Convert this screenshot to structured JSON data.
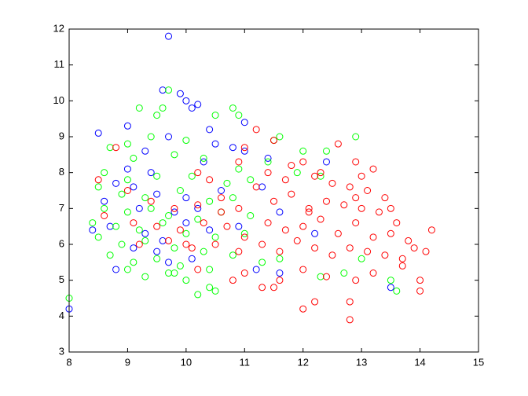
{
  "chart_data": {
    "type": "scatter",
    "xlim": [
      8,
      15
    ],
    "xticks": [
      8,
      9,
      10,
      11,
      12,
      13,
      14,
      15
    ],
    "ylim": [
      3,
      12
    ],
    "yticks": [
      3,
      4,
      5,
      6,
      7,
      8,
      9,
      10,
      11,
      12
    ],
    "grid": false,
    "marker": "circle",
    "series": [
      {
        "color": "#0000ff",
        "x": [
          9.7,
          9.6,
          9.9,
          10,
          10.1,
          10.2,
          9.0,
          8.5,
          9.7,
          10.4,
          11.0,
          9.3,
          10.5,
          10.8,
          11.0,
          9.0,
          9.4,
          10.3,
          11.4,
          12.4,
          8.8,
          9.1,
          9.5,
          10.0,
          10.6,
          11.3,
          8.6,
          9.2,
          9.8,
          10.2,
          8.4,
          8.7,
          9.3,
          9.6,
          10.4,
          11.6,
          12.2,
          9.1,
          9.5,
          9.7,
          10.1,
          11.2,
          11.6,
          8.8,
          8.0,
          13.5,
          10.9,
          10.0
        ],
        "values": [
          11.8,
          10.3,
          10.2,
          10,
          9.8,
          9.9,
          9.3,
          9.1,
          9.0,
          9.2,
          9.4,
          8.6,
          8.8,
          8.7,
          8.6,
          8.1,
          8.0,
          8.3,
          8.4,
          8.3,
          7.7,
          7.6,
          7.4,
          7.3,
          7.5,
          7.6,
          7.2,
          7.0,
          6.9,
          7.0,
          6.4,
          6.5,
          6.3,
          6.1,
          6.4,
          6.9,
          6.3,
          5.9,
          5.8,
          5.5,
          5.6,
          5.3,
          5.2,
          5.3,
          4.2,
          4.8,
          6.5,
          6.6
        ]
      },
      {
        "color": "#00ff00",
        "x": [
          8.0,
          9.7,
          13.6,
          12.9,
          10.8,
          9.2,
          9.5,
          9.6,
          10.5,
          10.9,
          9.0,
          9.4,
          10.0,
          11.5,
          11.6,
          12.0,
          12.4,
          8.7,
          9.1,
          9.8,
          10.3,
          10.9,
          11.4,
          11.9,
          8.6,
          9.0,
          9.5,
          10.1,
          10.7,
          11.1,
          8.5,
          8.9,
          9.3,
          9.9,
          10.4,
          10.8,
          8.6,
          9.0,
          9.4,
          9.7,
          10.2,
          10.6,
          11.1,
          8.4,
          8.8,
          9.2,
          9.6,
          10.0,
          10.5,
          11.0,
          8.5,
          8.9,
          9.3,
          9.8,
          10.3,
          10.8,
          8.7,
          9.1,
          9.5,
          9.9,
          10.4,
          11.3,
          9.0,
          9.3,
          9.8,
          10.0,
          10.2,
          10.4,
          10.5,
          9.7,
          11.6,
          12.3,
          13.5,
          12.7,
          12.3,
          13.0
        ],
        "values": [
          4.5,
          10.3,
          4.7,
          9.0,
          9.8,
          9.8,
          9.6,
          9.8,
          9.6,
          9.6,
          8.8,
          9.0,
          8.9,
          8.9,
          9.0,
          8.6,
          8.6,
          8.7,
          8.4,
          8.5,
          8.4,
          8.1,
          8.3,
          8.0,
          8.0,
          7.8,
          7.9,
          7.9,
          7.7,
          7.8,
          7.6,
          7.4,
          7.3,
          7.5,
          7.2,
          7.3,
          7.0,
          6.9,
          7.0,
          6.8,
          6.7,
          6.9,
          6.8,
          6.6,
          6.5,
          6.4,
          6.6,
          6.3,
          6.2,
          6.3,
          6.2,
          6.0,
          6.1,
          5.9,
          5.8,
          5.7,
          5.7,
          5.5,
          5.6,
          5.4,
          5.3,
          5.5,
          5.3,
          5.1,
          5.2,
          5.0,
          4.6,
          4.8,
          4.7,
          5.2,
          5.6,
          5.1,
          5.0,
          5.2,
          7.9,
          5.6
        ]
      },
      {
        "color": "#ff0000",
        "x": [
          14.2,
          12.8,
          12.0,
          14.0,
          14.0,
          14.1,
          13.9,
          12.2,
          12.8,
          11.2,
          11.5,
          11.0,
          12.0,
          12.6,
          12.9,
          13.2,
          8.5,
          8.8,
          9.0,
          9.4,
          9.8,
          10.2,
          10.6,
          10.9,
          11.2,
          11.5,
          11.8,
          12.1,
          12.4,
          12.7,
          13.0,
          13.3,
          13.6,
          8.6,
          9.1,
          9.5,
          9.9,
          10.3,
          10.7,
          11.0,
          11.4,
          11.7,
          12.0,
          12.3,
          12.6,
          12.9,
          13.2,
          13.5,
          13.8,
          9.2,
          9.7,
          10.1,
          10.5,
          10.9,
          11.3,
          11.6,
          11.9,
          12.2,
          12.5,
          12.8,
          13.1,
          13.4,
          13.7,
          10.8,
          11.0,
          11.3,
          11.6,
          12.0,
          12.4,
          12.9,
          13.2,
          13.7,
          11.4,
          11.7,
          12.2,
          12.5,
          12.8,
          13.1,
          10.4,
          10.9,
          10.2,
          11.8,
          12.3,
          13.0,
          13.4,
          10.0,
          10.2,
          11.5,
          12.9,
          13.5,
          12.1,
          10.6
        ],
        "values": [
          6.4,
          3.9,
          4.2,
          4.7,
          5.0,
          5.8,
          5.9,
          4.4,
          4.4,
          9.2,
          8.9,
          8.7,
          8.3,
          8.8,
          8.3,
          8.1,
          7.8,
          8.7,
          7.5,
          7.2,
          7.0,
          7.1,
          7.3,
          7.0,
          7.6,
          7.2,
          7.4,
          7.0,
          7.2,
          7.1,
          7.0,
          6.9,
          6.6,
          6.8,
          6.6,
          6.5,
          6.4,
          6.6,
          6.5,
          6.2,
          6.6,
          6.4,
          6.5,
          6.7,
          6.3,
          6.6,
          6.2,
          6.3,
          6.1,
          6.0,
          6.1,
          5.9,
          6.0,
          5.8,
          6.0,
          5.8,
          6.1,
          5.9,
          5.7,
          5.9,
          5.8,
          5.7,
          5.6,
          5.0,
          5.2,
          4.8,
          5.0,
          5.3,
          5.1,
          5.0,
          5.2,
          5.4,
          8.0,
          7.8,
          7.9,
          7.7,
          7.6,
          7.5,
          7.8,
          8.3,
          8.0,
          8.2,
          8.0,
          7.9,
          7.3,
          6.0,
          5.3,
          4.8,
          7.3,
          7.0,
          6.9,
          6.9
        ]
      }
    ]
  }
}
